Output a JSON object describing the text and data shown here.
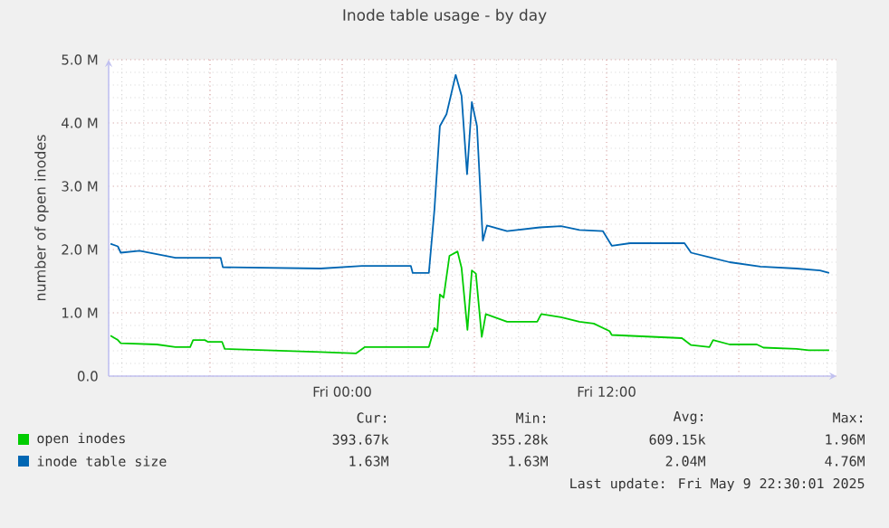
{
  "chart_data": {
    "type": "line",
    "title": "Inode table usage - by day",
    "ylabel": "number of open inodes",
    "xlim": [
      "2025-05-08T13:24",
      "2025-05-09T22:26"
    ],
    "ylim": [
      0,
      5000000
    ],
    "xticks": [
      {
        "value": "2025-05-08T18:00",
        "label": null
      },
      {
        "value": "2025-05-09T00:00",
        "label": "Fri 00:00"
      },
      {
        "value": "2025-05-09T06:00",
        "label": null
      },
      {
        "value": "2025-05-09T12:00",
        "label": "Fri 12:00"
      },
      {
        "value": "2025-05-09T18:00",
        "label": null
      }
    ],
    "yticks": [
      {
        "value": 0,
        "label": "0.0"
      },
      {
        "value": 1000000,
        "label": "1.0 M"
      },
      {
        "value": 2000000,
        "label": "2.0 M"
      },
      {
        "value": 3000000,
        "label": "3.0 M"
      },
      {
        "value": 4000000,
        "label": "4.0 M"
      },
      {
        "value": 5000000,
        "label": "5.0 M"
      }
    ],
    "grid": true,
    "legend": "bottom",
    "series": [
      {
        "name": "open inodes",
        "color": "#00cc00",
        "x": [
          "2025-05-08T13:29",
          "2025-05-08T13:49",
          "2025-05-08T13:57",
          "2025-05-08T15:35",
          "2025-05-08T16:26",
          "2025-05-08T17:06",
          "2025-05-08T17:14",
          "2025-05-08T17:46",
          "2025-05-08T17:55",
          "2025-05-08T18:33",
          "2025-05-08T18:40",
          "2025-05-08T20:31",
          "2025-05-08T23:01",
          "2025-05-09T00:38",
          "2025-05-09T01:02",
          "2025-05-09T03:56",
          "2025-05-09T04:11",
          "2025-05-09T04:19",
          "2025-05-09T04:26",
          "2025-05-09T04:36",
          "2025-05-09T04:52",
          "2025-05-09T05:14",
          "2025-05-09T05:25",
          "2025-05-09T05:41",
          "2025-05-09T05:53",
          "2025-05-09T06:04",
          "2025-05-09T06:20",
          "2025-05-09T06:31",
          "2025-05-09T07:29",
          "2025-05-09T08:51",
          "2025-05-09T09:02",
          "2025-05-09T09:56",
          "2025-05-09T10:46",
          "2025-05-09T11:25",
          "2025-05-09T12:08",
          "2025-05-09T12:14",
          "2025-05-09T15:25",
          "2025-05-09T15:50",
          "2025-05-09T16:40",
          "2025-05-09T16:50",
          "2025-05-09T17:35",
          "2025-05-09T18:49",
          "2025-05-09T19:07",
          "2025-05-09T20:37",
          "2025-05-09T21:10",
          "2025-05-09T22:06"
        ],
        "values": [
          640000,
          570000,
          520000,
          500000,
          460000,
          460000,
          570000,
          570000,
          540000,
          540000,
          430000,
          410000,
          380000,
          360000,
          460000,
          460000,
          760000,
          710000,
          1290000,
          1240000,
          1900000,
          1970000,
          1710000,
          730000,
          1670000,
          1620000,
          620000,
          980000,
          860000,
          860000,
          980000,
          930000,
          860000,
          830000,
          710000,
          650000,
          600000,
          490000,
          460000,
          570000,
          500000,
          500000,
          450000,
          430000,
          410000,
          410000
        ]
      },
      {
        "name": "inode table size",
        "color": "#0066b3",
        "x": [
          "2025-05-08T13:29",
          "2025-05-08T13:49",
          "2025-05-08T13:57",
          "2025-05-08T14:48",
          "2025-05-08T16:26",
          "2025-05-08T18:29",
          "2025-05-08T18:35",
          "2025-05-08T23:01",
          "2025-05-09T00:54",
          "2025-05-09T03:07",
          "2025-05-09T03:12",
          "2025-05-09T03:56",
          "2025-05-09T04:11",
          "2025-05-09T04:26",
          "2025-05-09T04:44",
          "2025-05-09T05:09",
          "2025-05-09T05:25",
          "2025-05-09T05:40",
          "2025-05-09T05:53",
          "2025-05-09T06:07",
          "2025-05-09T06:23",
          "2025-05-09T06:34",
          "2025-05-09T07:29",
          "2025-05-09T08:58",
          "2025-05-09T09:56",
          "2025-05-09T10:46",
          "2025-05-09T11:50",
          "2025-05-09T12:14",
          "2025-05-09T13:04",
          "2025-05-09T15:32",
          "2025-05-09T15:50",
          "2025-05-09T16:46",
          "2025-05-09T17:35",
          "2025-05-09T18:59",
          "2025-05-09T20:37",
          "2025-05-09T21:41",
          "2025-05-09T22:06"
        ],
        "values": [
          2090000,
          2050000,
          1950000,
          1980000,
          1870000,
          1870000,
          1720000,
          1700000,
          1740000,
          1740000,
          1630000,
          1630000,
          2620000,
          3950000,
          4140000,
          4760000,
          4430000,
          3190000,
          4330000,
          3950000,
          2140000,
          2380000,
          2290000,
          2350000,
          2370000,
          2310000,
          2290000,
          2060000,
          2100000,
          2100000,
          1950000,
          1870000,
          1800000,
          1730000,
          1700000,
          1670000,
          1630000
        ]
      }
    ],
    "annotations": [
      "Cur:",
      "Min:",
      "Avg:",
      "Max:",
      "393.67k",
      "355.28k",
      "609.15k",
      "1.96M",
      "1.63M",
      "1.63M",
      "2.04M",
      "4.76M",
      "Last update: Fri May  9 22:30:01 2025"
    ]
  }
}
